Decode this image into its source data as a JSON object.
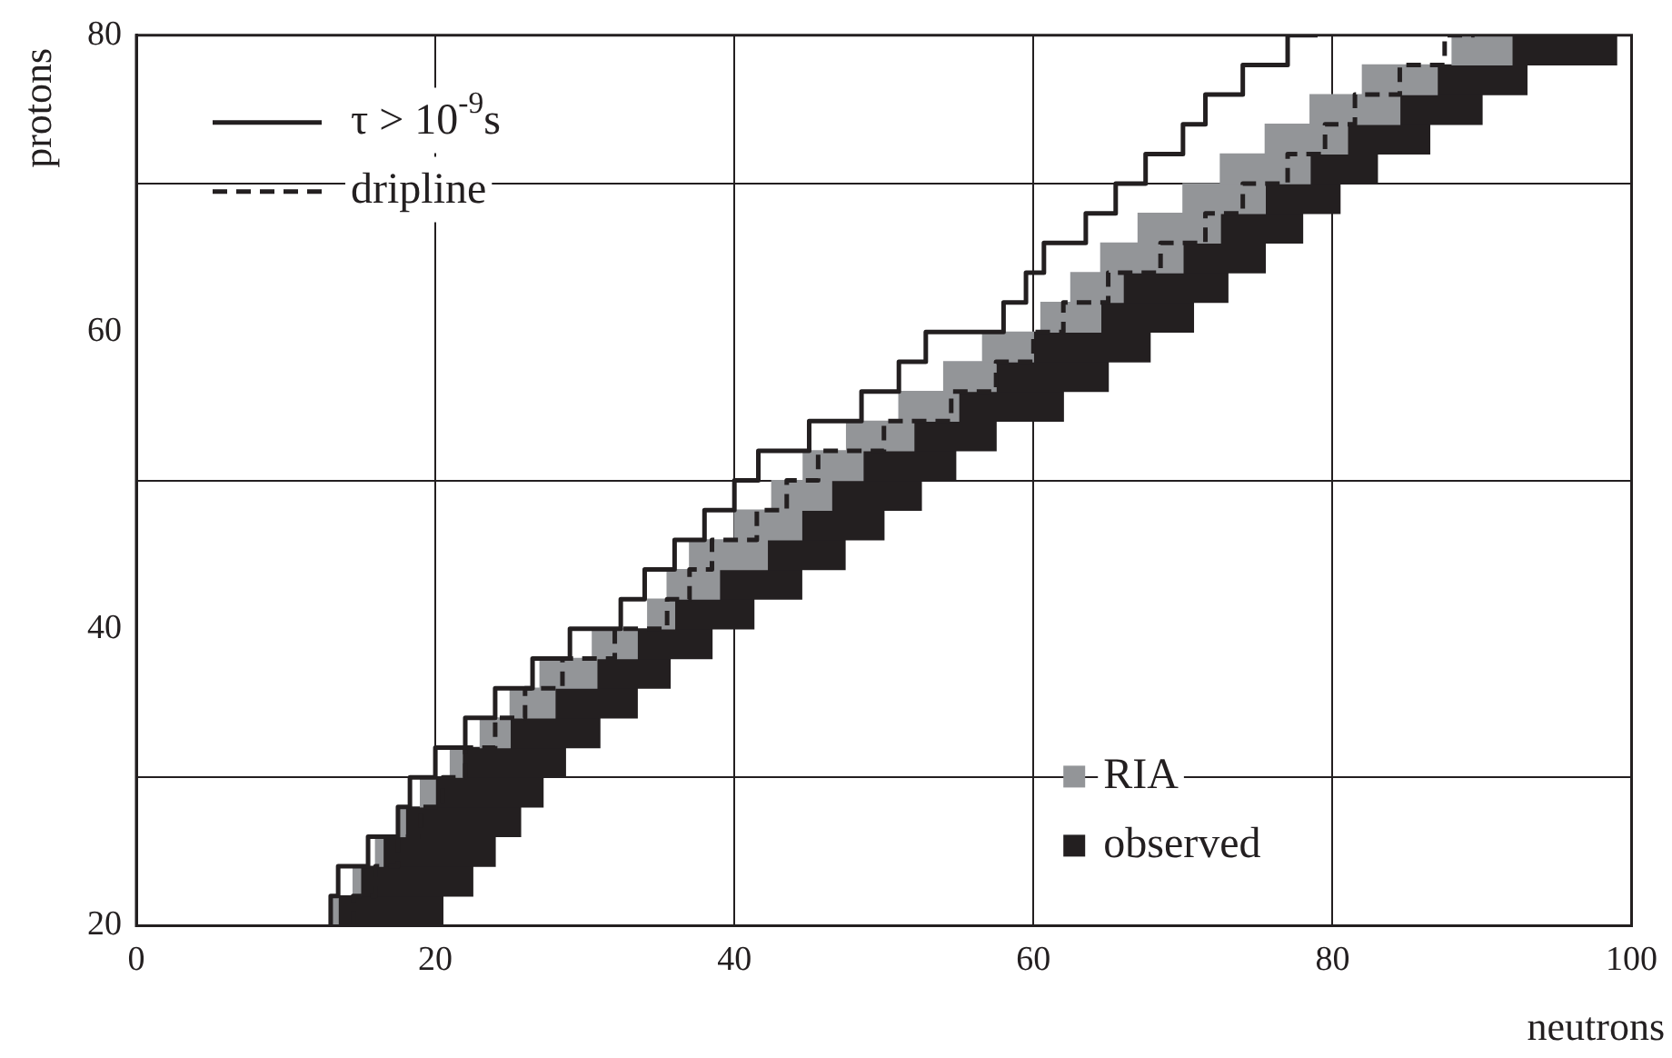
{
  "chart_data": {
    "type": "bar",
    "xlabel": "neutrons",
    "ylabel": "protons",
    "xlim": [
      0,
      100
    ],
    "xticks": [
      0,
      20,
      40,
      60,
      80,
      100
    ],
    "ylim": [
      20,
      80
    ],
    "yticks": [
      20,
      40,
      60,
      80
    ],
    "grid": true,
    "legend": "top left",
    "orientation": "horizontal",
    "series": [
      {
        "name": "RIA",
        "color": "#939598",
        "x": [
          21,
          23,
          25,
          27,
          29,
          31,
          33,
          35,
          37,
          39,
          41,
          43,
          45,
          47,
          49,
          51,
          53,
          55,
          57,
          59,
          61,
          63,
          65,
          67,
          69,
          71,
          73,
          75,
          77,
          79
        ],
        "base": [
          13,
          14.5,
          16,
          17.5,
          19,
          21,
          23,
          25,
          27,
          30.5,
          34.2,
          35.5,
          37,
          40,
          42.5,
          44.6,
          47.5,
          51,
          54,
          56.6,
          60.5,
          62.5,
          64.5,
          67,
          70,
          72.5,
          75.5,
          78.5,
          82,
          88
        ],
        "values": [
          0.5,
          0.5,
          0.5,
          0.5,
          1,
          0.8,
          2,
          3,
          3.8,
          3,
          1.8,
          3.5,
          5.2,
          4.5,
          4,
          4,
          4.5,
          4,
          3.5,
          3.4,
          4,
          3.5,
          5.5,
          5.5,
          5.5,
          6,
          5.5,
          6,
          5,
          4
        ]
      },
      {
        "name": "observed",
        "color": "#231f20",
        "x": [
          21,
          23,
          25,
          27,
          29,
          31,
          33,
          35,
          37,
          39,
          41,
          43,
          45,
          47,
          49,
          51,
          53,
          55,
          57,
          59,
          61,
          63,
          65,
          67,
          69,
          71,
          73,
          75,
          77,
          79
        ],
        "base": [
          13.5,
          15,
          16.5,
          18,
          20,
          21.8,
          25,
          28,
          30.8,
          33.5,
          36,
          39,
          42.2,
          44.5,
          46.5,
          48.6,
          52,
          55,
          57.5,
          60,
          64.5,
          66,
          70,
          72.5,
          75.5,
          78.5,
          81,
          84.5,
          87,
          92
        ],
        "values": [
          7,
          7.5,
          7.5,
          7.7,
          7.2,
          6.9,
          6,
          5.5,
          4.9,
          5,
          5.3,
          5.5,
          5.2,
          5.5,
          6,
          6.2,
          5.5,
          7,
          7.5,
          7.8,
          6.2,
          7,
          5.5,
          5.5,
          5,
          4.5,
          5.5,
          5.5,
          6,
          7
        ]
      },
      {
        "name": "τ > 10$^{-9}$s",
        "type": "step",
        "color": "#231f20",
        "line_style": "solid",
        "x": [
          20,
          22,
          24,
          26,
          28,
          30,
          32,
          34,
          36,
          38,
          40,
          42,
          44,
          46,
          48,
          50,
          52,
          54,
          56,
          58,
          60,
          62,
          64,
          66,
          68,
          70,
          72,
          74,
          76,
          78,
          80
        ],
        "values": [
          13,
          13.5,
          15.5,
          17.5,
          18.3,
          20,
          22,
          24,
          26.5,
          29,
          32.4,
          34,
          36,
          38,
          40,
          41.6,
          45,
          48.5,
          51,
          52.8,
          58,
          59.5,
          60.7,
          63.5,
          65.5,
          67.5,
          70,
          71.5,
          74,
          77,
          79
        ]
      },
      {
        "name": "dripline",
        "type": "step",
        "color": "#231f20",
        "line_style": "dashed",
        "x": [
          20,
          22,
          24,
          26,
          28,
          30,
          32,
          34,
          36,
          38,
          40,
          42,
          44,
          46,
          48,
          50,
          52,
          54,
          56,
          58,
          60,
          62,
          64,
          66,
          68,
          70,
          72,
          74,
          76,
          78,
          80
        ],
        "values": [
          14.5,
          16,
          17.5,
          19,
          20.5,
          22,
          24,
          26,
          28.5,
          32,
          35.5,
          37,
          38.5,
          41.5,
          43.5,
          45.6,
          50,
          54.5,
          57.5,
          60,
          62,
          65,
          68.5,
          71.5,
          74,
          77,
          79.5,
          81.5,
          84.5,
          87.5,
          89.5
        ]
      }
    ]
  }
}
